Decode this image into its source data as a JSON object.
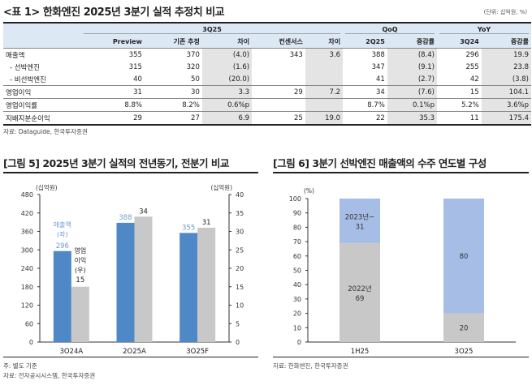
{
  "table": {
    "title": "<표 1> 한화엔진 2025년 3분기 실적 추정치 비교",
    "unit": "(단위: 십억원, %)",
    "group_headers": [
      "3Q25",
      "QoQ",
      "YoY"
    ],
    "columns": [
      "Preview",
      "기존 추정",
      "차이",
      "컨센서스",
      "차이",
      "2Q25",
      "증감률",
      "3Q24",
      "증감률"
    ],
    "rows": [
      {
        "label": "매출액",
        "values": [
          "355",
          "370",
          "(4.0)",
          "343",
          "3.6",
          "388",
          "(8.4)",
          "296",
          "19.9"
        ]
      },
      {
        "label": "- 선박엔진",
        "values": [
          "315",
          "320",
          "(1.6)",
          "",
          "",
          "347",
          "(9.1)",
          "255",
          "23.8"
        ]
      },
      {
        "label": "- 비선박엔진",
        "values": [
          "40",
          "50",
          "(20.0)",
          "",
          "",
          "41",
          "(2.7)",
          "42",
          "(3.8)"
        ]
      },
      {
        "label": "영업이익",
        "values": [
          "31",
          "30",
          "3.3",
          "29",
          "7.2",
          "34",
          "(7.6)",
          "15",
          "104.1"
        ]
      },
      {
        "label": "영업이익률",
        "values": [
          "8.8%",
          "8.2%",
          "0.6%p",
          "",
          "",
          "8.7%",
          "0.1%p",
          "5.2%",
          "3.6%p"
        ]
      },
      {
        "label": "지배지분순이익",
        "values": [
          "29",
          "27",
          "6.9",
          "25",
          "19.0",
          "22",
          "35.3",
          "11",
          "175.4"
        ]
      }
    ],
    "source": "자료: Dataguide, 한국투자증권"
  },
  "fig5": {
    "title": "[그림 5] 2025년 3분기 실적의 전년동기, 전분기 비교",
    "note": "주: 별도 기준",
    "source": "자료: 전자공시시스템, 한국투자증권"
  },
  "fig6": {
    "title": "[그림 6] 3분기 선박엔진 매출액의 수주 연도별 구성",
    "source": "자료: 한화엔진, 한국투자증권"
  },
  "chart_data": [
    {
      "type": "bar",
      "categories": [
        "3Q24A",
        "2Q25A",
        "3Q25F"
      ],
      "series": [
        {
          "name": "매출액 (좌)",
          "values": [
            296,
            388,
            355
          ],
          "color": "#4f88c6",
          "axis": "left"
        },
        {
          "name": "영업이익 (우)",
          "values": [
            15,
            34,
            31
          ],
          "color": "#c8c8c8",
          "axis": "right"
        }
      ],
      "ylabel_left": "(십억원)",
      "ylabel_right": "(십억원)",
      "ylim_left": [
        0,
        480
      ],
      "yticks_left": [
        0,
        60,
        120,
        180,
        240,
        300,
        360,
        420,
        480
      ],
      "ylim_right": [
        0,
        40
      ],
      "yticks_right": [
        0,
        5,
        10,
        15,
        20,
        25,
        30,
        35,
        40
      ],
      "labels": {
        "s0": [
          "매출액",
          "(좌)"
        ],
        "s1": [
          "영업",
          "이익",
          "(우)"
        ]
      }
    },
    {
      "type": "bar",
      "stacked": true,
      "categories": [
        "1H25",
        "3Q25"
      ],
      "series": [
        {
          "name": "2022년",
          "values": [
            69,
            20
          ],
          "color": "#c8c8c8"
        },
        {
          "name": "2023년~",
          "values": [
            31,
            80
          ],
          "color": "#a6bde6"
        }
      ],
      "ylabel": "(%)",
      "ylim": [
        0,
        100
      ],
      "yticks": [
        0,
        10,
        20,
        30,
        40,
        50,
        60,
        70,
        80,
        90,
        100
      ]
    }
  ]
}
